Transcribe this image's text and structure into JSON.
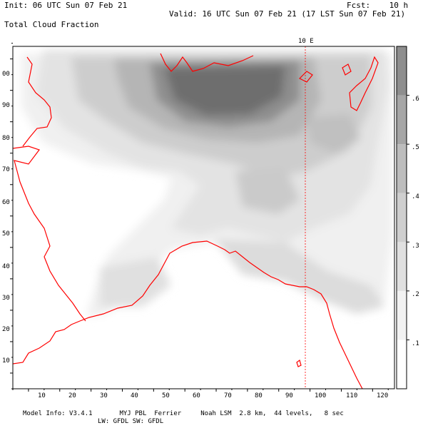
{
  "header": {
    "init": "Init: 06 UTC Sun 07 Feb 21",
    "fcst": "Fcst:    10 h",
    "valid": "Valid: 16 UTC Sun 07 Feb 21 (17 LST Sun 07 Feb 21)",
    "field": "Total Cloud Fraction"
  },
  "map": {
    "meridian_label": "10 E",
    "x_ticks": [
      "10",
      "20",
      "30",
      "40",
      "50",
      "60",
      "70",
      "80",
      "90",
      "100",
      "110",
      "120"
    ],
    "y_ticks": [
      "10",
      "20",
      "30",
      "40",
      "50",
      "60",
      "70",
      "80",
      "90",
      "00"
    ]
  },
  "colorbar": {
    "labels": [
      ".1",
      ".2",
      ".3",
      ".4",
      ".5",
      ".6"
    ],
    "levels": [
      0.1,
      0.2,
      0.3,
      0.4,
      0.5,
      0.6
    ],
    "colors": [
      "#ffffff",
      "#f2f2f2",
      "#e0e0e0",
      "#cfcfcf",
      "#bdbdbd",
      "#a6a6a6",
      "#8e8e8e"
    ]
  },
  "footer": {
    "line1": "Model Info: V3.4.1       MYJ PBL  Ferrier     Noah LSM  2.8 km,  44 levels,   8 sec",
    "line2": "LW: GFDL SW: GFDL"
  },
  "colors": {
    "coast": "#ff0000",
    "shade_dark": "#5e5e5e"
  }
}
